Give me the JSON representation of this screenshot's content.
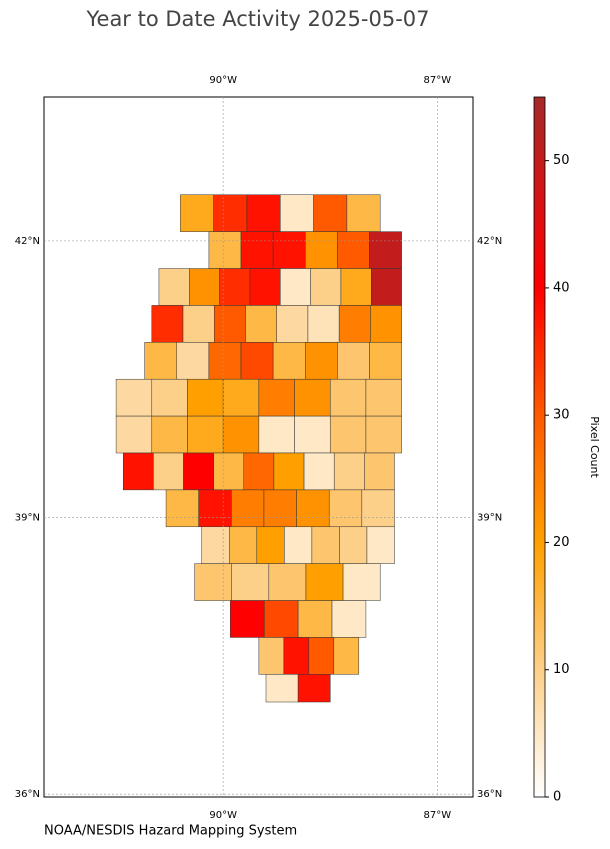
{
  "map": {
    "type": "choropleth",
    "title": "Year to Date Activity 2025-05-07",
    "footer": "NOAA/NESDIS Hazard Mapping System",
    "colorbar_label": "Pixel Count",
    "xlim": [
      -92.51,
      -86.5
    ],
    "ylim": [
      35.97,
      43.56
    ],
    "xticks": [
      {
        "value": -90,
        "label": "90°W"
      },
      {
        "value": -87,
        "label": "87°W"
      }
    ],
    "yticks": [
      {
        "value": 42,
        "label": "42°N"
      },
      {
        "value": 39,
        "label": "39°N"
      },
      {
        "value": 36,
        "label": "36°N"
      }
    ],
    "grid": true,
    "clim": [
      0,
      55
    ],
    "cticks": [
      0,
      10,
      20,
      30,
      40,
      50
    ],
    "colormap": [
      {
        "value": 0,
        "color": "#ffffff"
      },
      {
        "value": 10,
        "color": "#fdd08a"
      },
      {
        "value": 20,
        "color": "#ffa000"
      },
      {
        "value": 30,
        "color": "#ff5a00"
      },
      {
        "value": 40,
        "color": "#ff0000"
      },
      {
        "value": 55,
        "color": "#a52a2a"
      }
    ],
    "values": [
      [
        18,
        35,
        38,
        5,
        30,
        15
      ],
      [
        15,
        38,
        38,
        22,
        30,
        50
      ],
      [
        10,
        22,
        35,
        38,
        5,
        10,
        18,
        50
      ],
      [
        35,
        10,
        30,
        15,
        8,
        6,
        25,
        22
      ],
      [
        15,
        8,
        28,
        32,
        15,
        22,
        12,
        15
      ],
      [
        8,
        10,
        20,
        18,
        25,
        22,
        12,
        12
      ],
      [
        8,
        15,
        18,
        22,
        5,
        5,
        12,
        12
      ],
      [
        38,
        10,
        40,
        15,
        28,
        20,
        5,
        10,
        12
      ],
      [
        15,
        38,
        25,
        25,
        22,
        12,
        10
      ],
      [
        8,
        15,
        20,
        5,
        12,
        10,
        5
      ],
      [
        12,
        10,
        12,
        20,
        5
      ],
      [
        40,
        32,
        15,
        5
      ],
      [
        12,
        38,
        30,
        15
      ],
      [
        5,
        38
      ]
    ]
  }
}
